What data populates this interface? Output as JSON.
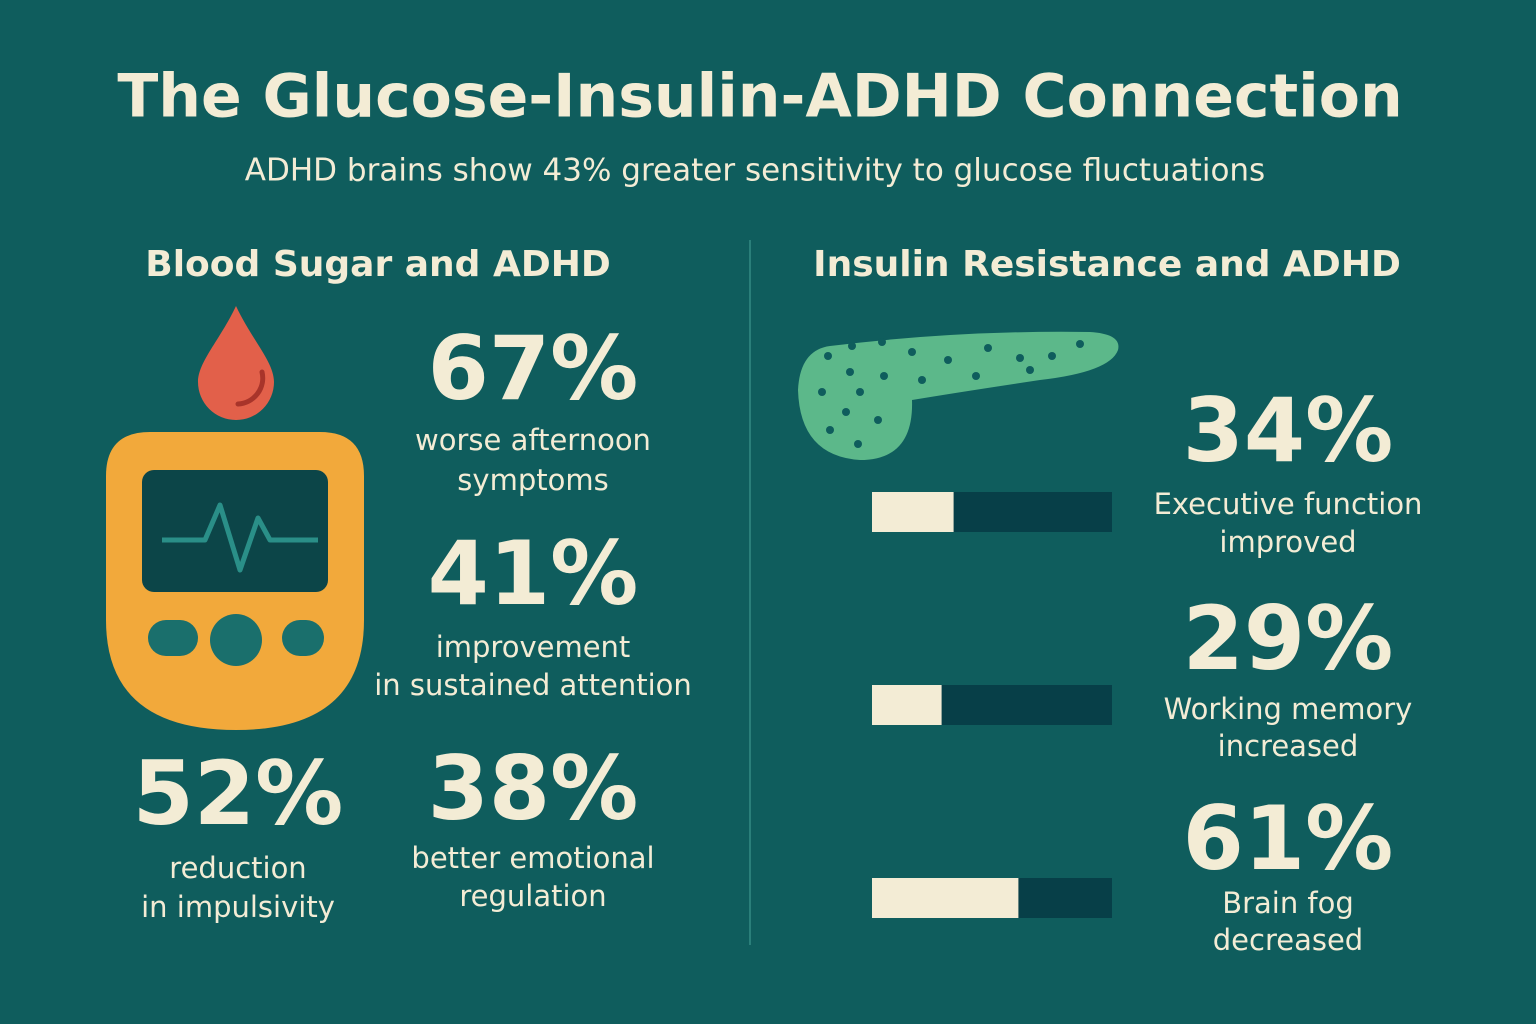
{
  "title": "The Glucose-Insulin-ADHD Connection",
  "subtitle": "ADHD brains show 43% greater sensitivity to glucose fluctuations",
  "blood_sugar": {
    "heading": "Blood Sugar and ADHD",
    "stats": [
      {
        "value": 67,
        "label": "67%",
        "caption": [
          "worse afternoon",
          "symptoms"
        ]
      },
      {
        "value": 41,
        "label": "41%",
        "caption": [
          "improvement",
          "in sustained attention"
        ]
      },
      {
        "value": 52,
        "label": "52%",
        "caption": [
          "reduction",
          "in impulsivity"
        ]
      },
      {
        "value": 38,
        "label": "38%",
        "caption": [
          "better emotional",
          "regulation"
        ]
      }
    ]
  },
  "insulin": {
    "heading": "Insulin Resistance and ADHD",
    "stats": [
      {
        "value": 34,
        "label": "34%",
        "caption": [
          "Executive function",
          "improved"
        ]
      },
      {
        "value": 29,
        "label": "29%",
        "caption": [
          "Working memory",
          "increased"
        ]
      },
      {
        "value": 61,
        "label": "61%",
        "caption": [
          "Brain fog",
          "decreased"
        ]
      }
    ]
  }
}
